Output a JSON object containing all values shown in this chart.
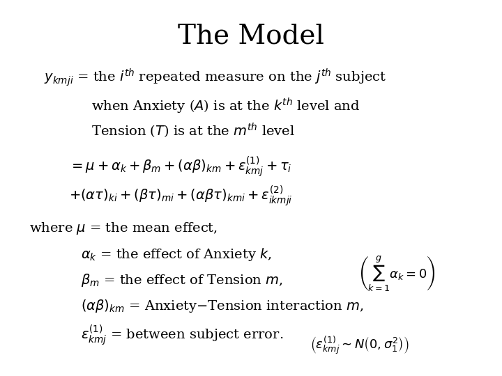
{
  "title": "The Model",
  "background_color": "#ffffff",
  "text_color": "#000000",
  "title_fontsize": 28,
  "body_fontsize": 15,
  "figsize": [
    7.2,
    5.4
  ],
  "dpi": 100
}
